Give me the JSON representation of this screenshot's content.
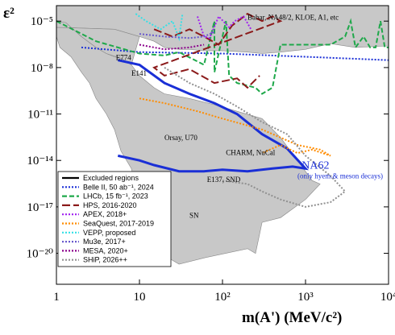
{
  "chart_data": {
    "type": "line",
    "xlabel": "m(A') (MeV/c²)",
    "ylabel": "ε²",
    "x_scale": "log",
    "y_scale": "log",
    "xlim": [
      1,
      10000
    ],
    "ylim": [
      1e-22,
      0.0001
    ],
    "x_ticks": [
      {
        "value": 1,
        "label": "1"
      },
      {
        "value": 10,
        "label": "10"
      },
      {
        "value": 100,
        "label": "10²"
      },
      {
        "value": 1000,
        "label": "10³"
      },
      {
        "value": 10000,
        "label": "10⁴"
      }
    ],
    "y_ticks": [
      {
        "value": 1e-05,
        "label": "10⁻⁵"
      },
      {
        "value": 1e-08,
        "label": "10⁻⁸"
      },
      {
        "value": 1e-11,
        "label": "10⁻¹¹"
      },
      {
        "value": 1e-14,
        "label": "10⁻¹⁴"
      },
      {
        "value": 1e-17,
        "label": "10⁻¹⁷"
      },
      {
        "value": 1e-20,
        "label": "10⁻²⁰"
      }
    ],
    "grid": false,
    "legend_position": "bottom-left",
    "annotations": [
      {
        "text": "Babar, NA48/2, KLOE, A1, etc",
        "x": 200,
        "y": 1.2e-05
      },
      {
        "text": "E774",
        "x": 5.2,
        "y": 3e-08
      },
      {
        "text": "E141",
        "x": 8,
        "y": 3e-09
      },
      {
        "text": "Orsay, U70",
        "x": 20,
        "y": 2e-13
      },
      {
        "text": "CHARM, NuCal",
        "x": 110,
        "y": 2.2e-14
      },
      {
        "text": "E137, SND",
        "x": 65,
        "y": 4e-16
      },
      {
        "text": "SN",
        "x": 40,
        "y": 2e-18
      },
      {
        "text": "NA62",
        "x": 900,
        "y": 3e-15,
        "color": "#1a2fd6"
      },
      {
        "text": "(only hyem.& meson decays)",
        "x": 800,
        "y": 7e-16,
        "color": "#1a2fd6"
      }
    ],
    "regions": [
      {
        "name": "Excluded regions",
        "color": "#c8c8c8",
        "points": [
          [
            1,
            1e-05
          ],
          [
            1.3,
            8e-06
          ],
          [
            2,
            1e-06
          ],
          [
            3,
            2e-07
          ],
          [
            4,
            8e-08
          ],
          [
            5,
            5e-08
          ],
          [
            6,
            4e-08
          ],
          [
            8,
            1.5e-08
          ],
          [
            10,
            3e-09
          ],
          [
            15,
            5e-10
          ],
          [
            20,
            2e-10
          ],
          [
            40,
            1e-10
          ],
          [
            80,
            4e-11
          ],
          [
            150,
            1.5e-11
          ],
          [
            300,
            5e-12
          ],
          [
            500,
            3e-13
          ],
          [
            800,
            1e-14
          ],
          [
            1200,
            5e-16
          ],
          [
            1500,
            3e-16
          ],
          [
            1000,
            3e-17
          ],
          [
            500,
            2e-18
          ],
          [
            300,
            1e-18
          ],
          [
            250,
            1e-20
          ],
          [
            200,
            2e-20
          ],
          [
            60,
            5e-21
          ],
          [
            30,
            2e-21
          ],
          [
            18,
            1e-20
          ],
          [
            12,
            1e-18
          ],
          [
            10,
            1e-17
          ],
          [
            8,
            3e-15
          ],
          [
            6,
            4e-14
          ],
          [
            5,
            1e-12
          ],
          [
            4,
            1e-11
          ],
          [
            3,
            1e-10
          ],
          [
            2.5,
            1e-09
          ],
          [
            2,
            5e-09
          ],
          [
            1.5,
            5e-08
          ],
          [
            1.1,
            2e-07
          ],
          [
            1,
            1e-06
          ]
        ]
      },
      {
        "name": "Excluded top band",
        "color": "#c8c8c8",
        "points": [
          [
            1,
            0.0001
          ],
          [
            10000,
            0.0001
          ],
          [
            10000,
            2.5e-07
          ],
          [
            4000,
            2e-07
          ],
          [
            2000,
            3.5e-07
          ],
          [
            1000,
            1.5e-07
          ],
          [
            500,
            1e-07
          ],
          [
            300,
            8e-08
          ],
          [
            200,
            1e-07
          ],
          [
            100,
            1.2e-07
          ],
          [
            60,
            1.2e-07
          ],
          [
            40,
            1.5e-07
          ],
          [
            30,
            1.5e-07
          ],
          [
            20,
            2e-07
          ],
          [
            15,
            5e-07
          ],
          [
            10,
            1e-06
          ],
          [
            5,
            3e-06
          ],
          [
            1,
            4e-06
          ]
        ]
      },
      {
        "name": "Excluded low-mass wedge",
        "color": "#c8c8c8",
        "points": [
          [
            1,
            4e-06
          ],
          [
            5,
            3e-06
          ],
          [
            10,
            1e-06
          ],
          [
            8,
            1.5e-08
          ],
          [
            6,
            4e-08
          ],
          [
            4,
            8e-08
          ],
          [
            3,
            2e-07
          ],
          [
            2,
            1e-06
          ],
          [
            1.3,
            8e-06
          ],
          [
            1,
            1e-05
          ]
        ]
      }
    ],
    "series": [
      {
        "name": "Excluded regions",
        "legend_only": true,
        "color": "#000000",
        "style": "solid",
        "points": []
      },
      {
        "name": "NA62",
        "legend_only": false,
        "color": "#1a2fd6",
        "style": "solid",
        "width": 3,
        "points": [
          [
            5.5,
            3e-08
          ],
          [
            10,
            1.5e-08
          ],
          [
            20,
            1e-09
          ],
          [
            40,
            2e-10
          ],
          [
            80,
            5e-11
          ],
          [
            150,
            1e-11
          ],
          [
            300,
            5e-13
          ],
          [
            600,
            6e-14
          ],
          [
            1000,
            3e-15
          ],
          [
            700,
            4e-15
          ],
          [
            400,
            3e-15
          ],
          [
            200,
            2e-15
          ],
          [
            100,
            2.5e-15
          ],
          [
            60,
            2e-15
          ],
          [
            30,
            2e-15
          ],
          [
            15,
            5e-15
          ],
          [
            10,
            1e-14
          ],
          [
            5.5,
            2e-14
          ]
        ]
      },
      {
        "name": "Belle II, 50 ab⁻¹, 2024",
        "color": "#1a2fd6",
        "style": "dot",
        "points": [
          [
            2,
            2e-07
          ],
          [
            10,
            1e-07
          ],
          [
            100,
            8e-08
          ],
          [
            1000,
            5e-08
          ],
          [
            10000,
            3e-08
          ]
        ]
      },
      {
        "name": "LHCb, 15 fb⁻¹, 2023",
        "color": "#1ea84a",
        "style": "dash",
        "points": [
          [
            1,
            1e-05
          ],
          [
            3,
            5e-07
          ],
          [
            10,
            8e-08
          ],
          [
            20,
            6e-08
          ],
          [
            30,
            1e-07
          ],
          [
            60,
            1.5e-08
          ],
          [
            80,
            1e-05
          ],
          [
            80,
            5e-09
          ],
          [
            110,
            1e-05
          ],
          [
            120,
            3e-09
          ],
          [
            150,
            1e-09
          ],
          [
            250,
            5e-10
          ],
          [
            300,
            2e-10
          ],
          [
            400,
            5e-10
          ],
          [
            500,
            3e-07
          ],
          [
            2000,
            3e-07
          ],
          [
            3000,
            1e-06
          ],
          [
            3500,
            1e-05
          ],
          [
            4000,
            2e-07
          ],
          [
            5000,
            1e-06
          ],
          [
            6000,
            2e-07
          ],
          [
            7000,
            2e-07
          ],
          [
            8000,
            1e-05
          ],
          [
            9000,
            2e-07
          ],
          [
            10000,
            2e-07
          ]
        ]
      },
      {
        "name": "HPS, 2016-2020",
        "color": "#8b1a1a",
        "style": "longdash",
        "points": [
          [
            15,
            3e-06
          ],
          [
            25,
            1e-06
          ],
          [
            40,
            3e-06
          ],
          [
            60,
            1e-06
          ],
          [
            90,
            3e-07
          ],
          [
            130,
            5e-06
          ],
          [
            200,
            3e-05
          ],
          [
            300,
            1e-05
          ],
          [
            400,
            2e-05
          ],
          [
            500,
            1e-05
          ],
          [
            15,
            1e-08
          ],
          [
            20,
            3e-09
          ],
          [
            40,
            8e-09
          ],
          [
            80,
            1e-09
          ],
          [
            150,
            2e-09
          ],
          [
            200,
            5e-10
          ],
          [
            280,
            3e-09
          ]
        ]
      },
      {
        "name": "APEX, 2018+",
        "color": "#a020f0",
        "style": "dot",
        "points": [
          [
            50,
            2e-05
          ],
          [
            60,
            1e-06
          ],
          [
            70,
            8e-07
          ],
          [
            90,
            2e-05
          ],
          [
            120,
            4e-06
          ],
          [
            140,
            1e-05
          ],
          [
            180,
            2e-05
          ],
          [
            220,
            3e-06
          ]
        ]
      },
      {
        "name": "SeaQuest, 2017-2019",
        "color": "#ff8c00",
        "style": "dot",
        "points": [
          [
            10,
            1e-10
          ],
          [
            20,
            5e-11
          ],
          [
            50,
            1.5e-11
          ],
          [
            100,
            5e-12
          ],
          [
            300,
            1e-12
          ],
          [
            800,
            1e-13
          ],
          [
            1500,
            5e-14
          ],
          [
            2000,
            2e-14
          ],
          [
            1200,
            5e-14
          ],
          [
            800,
            3e-14
          ],
          [
            500,
            1e-13
          ],
          [
            300,
            3e-14
          ]
        ]
      },
      {
        "name": "VEPP, proposed",
        "color": "#33e0e6",
        "style": "dot",
        "points": [
          [
            9,
            3e-05
          ],
          [
            12,
            1e-05
          ],
          [
            18,
            3e-06
          ],
          [
            25,
            1e-05
          ],
          [
            30,
            8e-07
          ],
          [
            33,
            3e-05
          ]
        ]
      },
      {
        "name": "Mu3e, 2017+",
        "color": "#6a5acd",
        "style": "dot",
        "points": [
          [
            10,
            1.5e-06
          ],
          [
            20,
            1e-06
          ],
          [
            40,
            8e-07
          ],
          [
            60,
            1e-06
          ],
          [
            80,
            2e-06
          ]
        ]
      },
      {
        "name": "MESA, 2020+",
        "color": "#8b008b",
        "style": "dot",
        "points": [
          [
            10,
            3e-07
          ],
          [
            20,
            1.5e-07
          ],
          [
            40,
            2e-07
          ],
          [
            60,
            3e-07
          ]
        ]
      },
      {
        "name": "SHiP, 2026++",
        "color": "#909090",
        "style": "dot",
        "points": [
          [
            20,
            1e-08
          ],
          [
            40,
            1e-09
          ],
          [
            80,
            2e-10
          ],
          [
            150,
            3e-11
          ],
          [
            300,
            3e-12
          ],
          [
            600,
            5e-13
          ],
          [
            1000,
            2e-14
          ],
          [
            2000,
            1e-15
          ],
          [
            3000,
            1e-16
          ],
          [
            2000,
            2e-17
          ],
          [
            1000,
            1e-17
          ],
          [
            500,
            3e-17
          ],
          [
            300,
            1e-16
          ],
          [
            200,
            3e-16
          ],
          [
            100,
            5e-16
          ]
        ]
      }
    ]
  }
}
